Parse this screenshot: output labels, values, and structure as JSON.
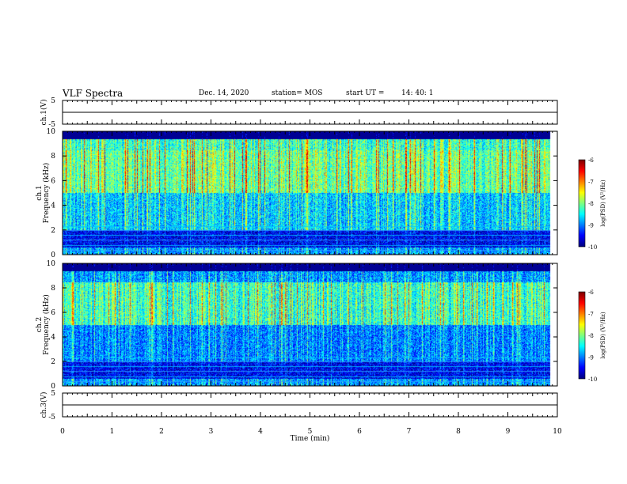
{
  "header": {
    "title": "VLF Spectra",
    "date": "Dec. 14, 2020",
    "station": "station= MOS",
    "start_label": "start  UT  =",
    "start_time": "14: 40: 1"
  },
  "chart_data": [
    {
      "type": "line",
      "id": "ch1-waveform",
      "ylabel": "ch.1(V)",
      "ylim": [
        -5,
        5
      ],
      "yticks": [
        "5",
        "-5"
      ],
      "x": [
        0,
        10
      ],
      "values": [
        0,
        0
      ],
      "color": "#000000"
    },
    {
      "type": "heatmap",
      "id": "ch1-spectrogram",
      "ylabel": "ch.1\nFrequency  (kHz)",
      "ylim": [
        0,
        10
      ],
      "xlim": [
        0,
        10
      ],
      "yticks": [
        "0",
        "2",
        "4",
        "6",
        "8",
        "10"
      ],
      "data_end_min": 9.85,
      "colorbar": {
        "ticks": [
          "-6",
          "-7",
          "-8",
          "-9",
          "-10"
        ],
        "range": [
          -10,
          -6
        ],
        "label": "log(PSD) (V²/Hz)"
      }
    },
    {
      "type": "heatmap",
      "id": "ch2-spectrogram",
      "ylabel": "ch.2\nFrequency  (kHz)",
      "ylim": [
        0,
        10
      ],
      "xlim": [
        0,
        10
      ],
      "yticks": [
        "0",
        "2",
        "4",
        "6",
        "8",
        "10"
      ],
      "data_end_min": 9.85,
      "colorbar": {
        "ticks": [
          "-6",
          "-7",
          "-8",
          "-9",
          "-10"
        ],
        "range": [
          -10,
          -6
        ],
        "label": "log(PSD) (V²/Hz)"
      }
    },
    {
      "type": "line",
      "id": "ch3-waveform",
      "ylabel": "ch.3(V)",
      "ylim": [
        -5,
        5
      ],
      "yticks": [
        "5",
        "-5"
      ],
      "x": [
        0,
        10
      ],
      "values": [
        0,
        0
      ],
      "color": "#000000"
    }
  ],
  "x_axis": {
    "label": "Time  (min)",
    "ticks": [
      "0",
      "1",
      "2",
      "3",
      "4",
      "5",
      "6",
      "7",
      "8",
      "9",
      "10"
    ],
    "range": [
      0,
      10
    ]
  }
}
